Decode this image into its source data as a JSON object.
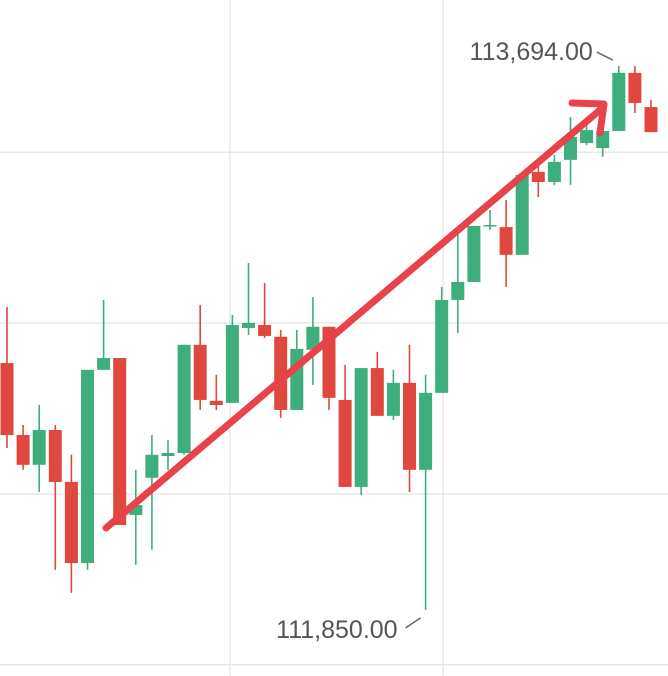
{
  "chart_data": {
    "type": "candlestick",
    "up_color": "#3eaf7c",
    "down_color": "#e0473e",
    "grid": true,
    "ylim": [
      111626,
      113918
    ],
    "yticks": [
      111664,
      112243,
      112823,
      113402
    ],
    "open": [
      112687,
      112443,
      112342,
      112460,
      112284,
      112009,
      112664,
      112704,
      112172,
      112298,
      112372,
      112382,
      112749,
      112559,
      112552,
      112806,
      112816,
      112776,
      112528,
      112732,
      112810,
      112562,
      112267,
      112670,
      112508,
      112620,
      112325,
      112586,
      112901,
      112962,
      113152,
      113148,
      113054,
      113335,
      113301,
      113376,
      113433,
      113416,
      113474,
      113671,
      113555
    ],
    "high": [
      112877,
      112477,
      112545,
      112477,
      112376,
      112664,
      112901,
      112704,
      112325,
      112443,
      112426,
      112749,
      112884,
      112647,
      112850,
      113026,
      112959,
      112799,
      112799,
      112911,
      112810,
      112681,
      112670,
      112725,
      112664,
      112749,
      112647,
      112945,
      113138,
      113152,
      113206,
      113240,
      113325,
      113365,
      113393,
      113521,
      113521,
      113498,
      113694,
      113694,
      113579
    ],
    "low": [
      112399,
      112325,
      112250,
      111986,
      111908,
      111986,
      112664,
      112138,
      112003,
      112054,
      112325,
      112376,
      112528,
      112528,
      112552,
      112782,
      112772,
      112501,
      112528,
      112613,
      112528,
      112267,
      112240,
      112508,
      112494,
      112250,
      111850,
      112586,
      112789,
      112962,
      113138,
      112945,
      113054,
      113250,
      113291,
      113291,
      113426,
      113386,
      113474,
      113535,
      113470
    ],
    "close": [
      112443,
      112342,
      112460,
      112284,
      112009,
      112664,
      112704,
      112138,
      112206,
      112376,
      112382,
      112749,
      112562,
      112545,
      112816,
      112823,
      112779,
      112528,
      112735,
      112810,
      112569,
      112267,
      112670,
      112508,
      112620,
      112325,
      112586,
      112901,
      112962,
      113152,
      113155,
      113054,
      113325,
      113301,
      113369,
      113454,
      113477,
      113474,
      113671,
      113569,
      113470
    ],
    "annotations": [
      {
        "label": "113,694.00",
        "value": 113694
      },
      {
        "label": "111,850.00",
        "value": 111850
      }
    ]
  }
}
